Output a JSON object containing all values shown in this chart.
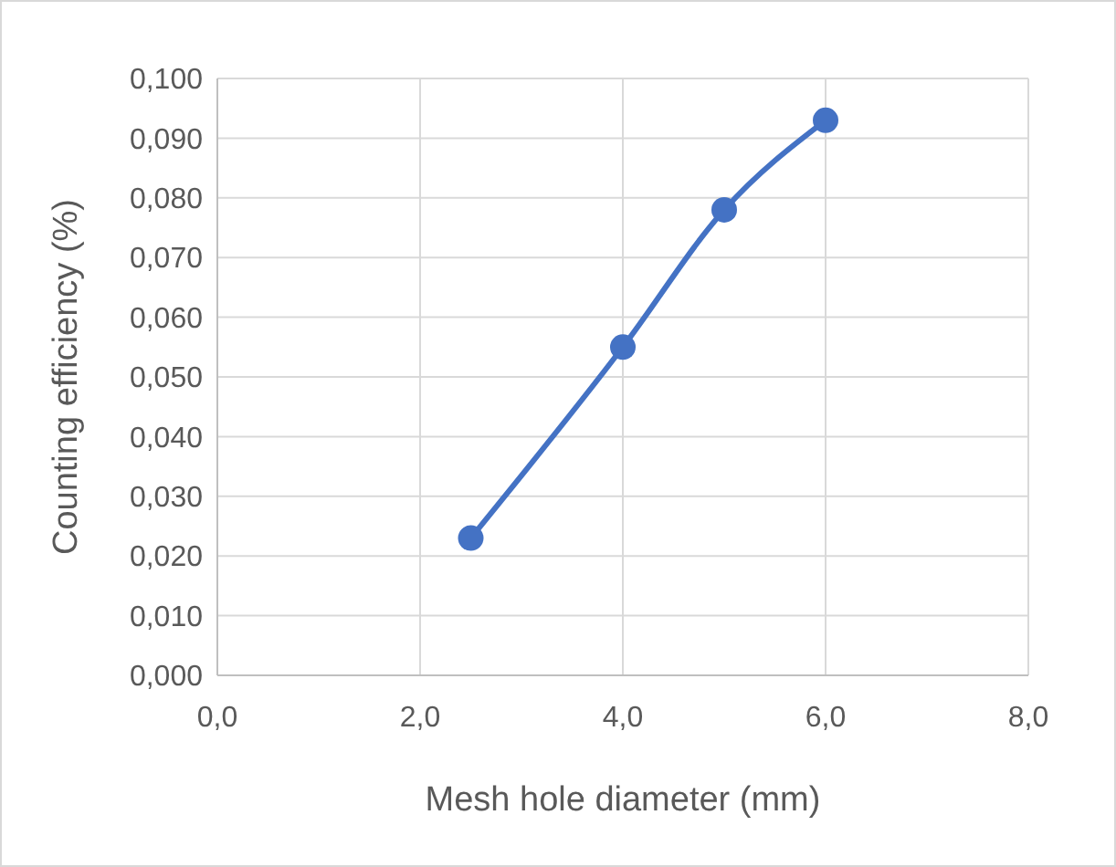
{
  "chart_data": {
    "type": "line",
    "xlabel": "Mesh hole diameter (mm)",
    "ylabel": "Counting efficiency (%)",
    "x": [
      2.5,
      4,
      5,
      6
    ],
    "series": [
      {
        "color": "#4472c4",
        "values": [
          0.023,
          0.055,
          0.078,
          0.093
        ]
      }
    ],
    "xlim": [
      0,
      8
    ],
    "xticks": [
      {
        "value": 0,
        "label": "0,0"
      },
      {
        "value": 2,
        "label": "2,0"
      },
      {
        "value": 4,
        "label": "4,0"
      },
      {
        "value": 6,
        "label": "6,0"
      },
      {
        "value": 8,
        "label": "8,0"
      }
    ],
    "ylim": [
      0,
      0.1
    ],
    "yticks": [
      {
        "value": 0,
        "label": "0,000"
      },
      {
        "value": 0.01,
        "label": "0,010"
      },
      {
        "value": 0.02,
        "label": "0,020"
      },
      {
        "value": 0.03,
        "label": "0,030"
      },
      {
        "value": 0.04,
        "label": "0,040"
      },
      {
        "value": 0.05,
        "label": "0,050"
      },
      {
        "value": 0.06,
        "label": "0,060"
      },
      {
        "value": 0.07,
        "label": "0,070"
      },
      {
        "value": 0.08,
        "label": "0,080"
      },
      {
        "value": 0.09,
        "label": "0,090"
      },
      {
        "value": 0.1,
        "label": "0,100"
      }
    ],
    "grid": true,
    "marker": "circle",
    "line_style": "solid"
  }
}
